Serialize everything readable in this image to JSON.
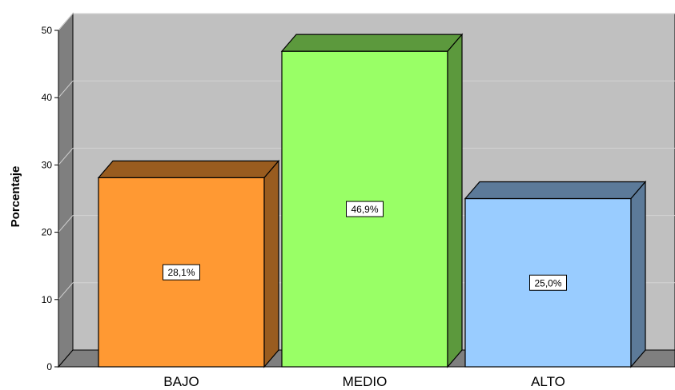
{
  "chart_data": {
    "type": "bar",
    "categories": [
      "BAJO",
      "MEDIO",
      "ALTO"
    ],
    "values": [
      28.1,
      46.9,
      25.0
    ],
    "data_labels": [
      "28,1%",
      "46,9%",
      "25,0%"
    ],
    "ylabel": "Porcentaje",
    "xlabel": "",
    "ylim": [
      0,
      50
    ],
    "yticks": [
      "0",
      "10",
      "20",
      "30",
      "40",
      "50"
    ],
    "grid": true,
    "colors": {
      "bars": [
        "#ff9933",
        "#99ff66",
        "#99ccff"
      ],
      "bars_top": [
        "#995c1f",
        "#5c993d",
        "#5c7a99"
      ],
      "bars_side": [
        "#995c1f",
        "#5c993d",
        "#5c7a99"
      ],
      "plot_background": "#c0c0c0",
      "floor": "#7f7f7f",
      "left_wall": "#7f7f7f",
      "gridline": "#d3d3d3"
    }
  }
}
